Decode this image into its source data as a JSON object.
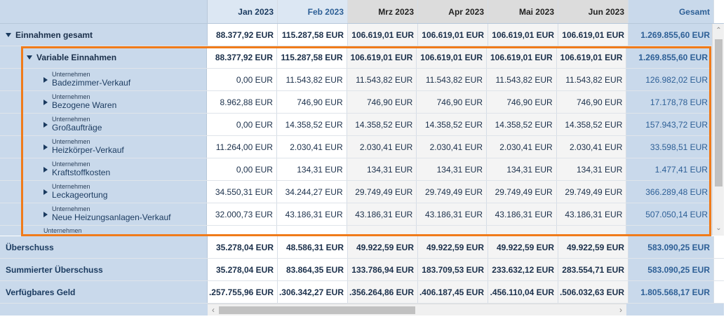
{
  "header": {
    "months": [
      "Jan 2023",
      "Feb 2023",
      "Mrz 2023",
      "Apr 2023",
      "Mai 2023",
      "Jun 2023"
    ],
    "total_label": "Gesamt"
  },
  "income_total": {
    "label": "Einnahmen gesamt",
    "values": [
      "88.377,92 EUR",
      "115.287,58 EUR",
      "106.619,01 EUR",
      "106.619,01 EUR",
      "106.619,01 EUR",
      "106.619,01 EUR"
    ],
    "total": "1.269.855,60 EUR"
  },
  "variable_income": {
    "label": "Variable Einnahmen",
    "values": [
      "88.377,92 EUR",
      "115.287,58 EUR",
      "106.619,01 EUR",
      "106.619,01 EUR",
      "106.619,01 EUR",
      "106.619,01 EUR"
    ],
    "total": "1.269.855,60 EUR"
  },
  "sub_rows": [
    {
      "category": "Unternehmen",
      "label": "Badezimmer-Verkauf",
      "values": [
        "0,00 EUR",
        "11.543,82 EUR",
        "11.543,82 EUR",
        "11.543,82 EUR",
        "11.543,82 EUR",
        "11.543,82 EUR"
      ],
      "total": "126.982,02 EUR"
    },
    {
      "category": "Unternehmen",
      "label": "Bezogene Waren",
      "values": [
        "8.962,88 EUR",
        "746,90 EUR",
        "746,90 EUR",
        "746,90 EUR",
        "746,90 EUR",
        "746,90 EUR"
      ],
      "total": "17.178,78 EUR"
    },
    {
      "category": "Unternehmen",
      "label": "Großaufträge",
      "values": [
        "0,00 EUR",
        "14.358,52 EUR",
        "14.358,52 EUR",
        "14.358,52 EUR",
        "14.358,52 EUR",
        "14.358,52 EUR"
      ],
      "total": "157.943,72 EUR"
    },
    {
      "category": "Unternehmen",
      "label": "Heizkörper-Verkauf",
      "values": [
        "11.264,00 EUR",
        "2.030,41 EUR",
        "2.030,41 EUR",
        "2.030,41 EUR",
        "2.030,41 EUR",
        "2.030,41 EUR"
      ],
      "total": "33.598,51 EUR"
    },
    {
      "category": "Unternehmen",
      "label": "Kraftstoffkosten",
      "values": [
        "0,00 EUR",
        "134,31 EUR",
        "134,31 EUR",
        "134,31 EUR",
        "134,31 EUR",
        "134,31 EUR"
      ],
      "total": "1.477,41 EUR"
    },
    {
      "category": "Unternehmen",
      "label": "Leckageortung",
      "values": [
        "34.550,31 EUR",
        "34.244,27 EUR",
        "29.749,49 EUR",
        "29.749,49 EUR",
        "29.749,49 EUR",
        "29.749,49 EUR"
      ],
      "total": "366.289,48 EUR"
    },
    {
      "category": "Unternehmen",
      "label": "Neue Heizungsanlagen-Verkauf",
      "values": [
        "32.000,73 EUR",
        "43.186,31 EUR",
        "43.186,31 EUR",
        "43.186,31 EUR",
        "43.186,31 EUR",
        "43.186,31 EUR"
      ],
      "total": "507.050,14 EUR"
    },
    {
      "category": "Unternehmen",
      "label": "",
      "values": [
        "",
        "",
        "",
        "",
        "",
        ""
      ],
      "total": ""
    }
  ],
  "summary_rows": [
    {
      "label": "Überschuss",
      "values": [
        "35.278,04 EUR",
        "48.586,31 EUR",
        "49.922,59 EUR",
        "49.922,59 EUR",
        "49.922,59 EUR",
        "49.922,59 EUR"
      ],
      "total": "583.090,25 EUR"
    },
    {
      "label": "Summierter Überschuss",
      "values": [
        "35.278,04 EUR",
        "83.864,35 EUR",
        "133.786,94 EUR",
        "183.709,53 EUR",
        "233.632,12 EUR",
        "283.554,71 EUR"
      ],
      "total": "583.090,25 EUR"
    },
    {
      "label": "Verfügbares Geld",
      "values": [
        ".257.755,96 EUR",
        ".306.342,27 EUR",
        ".356.264,86 EUR",
        ".406.187,45 EUR",
        ".456.110,04 EUR",
        ".506.032,63 EUR"
      ],
      "total": "1.805.568,17 EUR"
    }
  ],
  "scrollbars": {
    "up": "⌃",
    "down": "⌄",
    "left": "‹",
    "right": "›"
  },
  "colors": {
    "highlight": "#f07b1a",
    "header_bg": "#c9d9eb",
    "total_text": "#2d5f96"
  }
}
